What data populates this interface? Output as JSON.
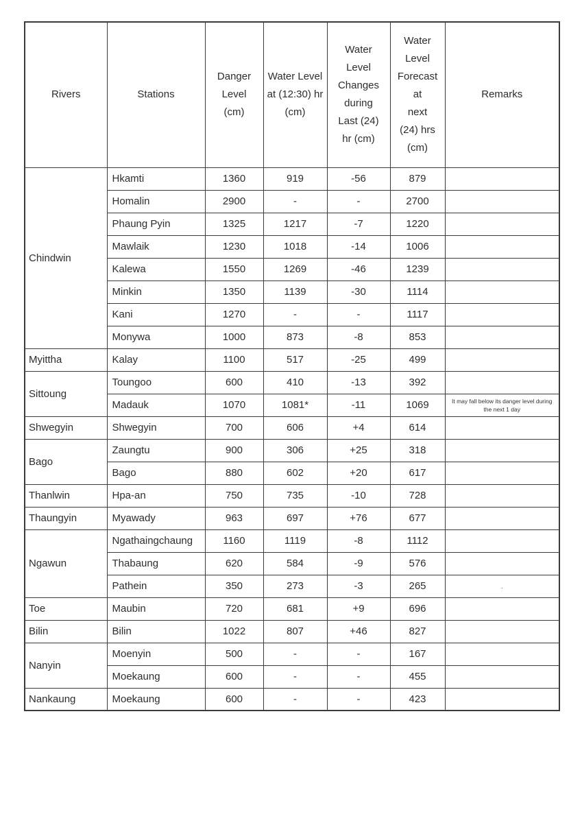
{
  "colors": {
    "background": "#ffffff",
    "text": "#2d2d2d",
    "border": "#3a3a3a"
  },
  "table": {
    "columns": [
      {
        "id": "rivers",
        "label": "Rivers"
      },
      {
        "id": "stations",
        "label": "Stations"
      },
      {
        "id": "danger-level",
        "label": "Danger\nLevel\n(cm)"
      },
      {
        "id": "water-level",
        "label": "Water Level\nat (12:30) hr\n(cm)"
      },
      {
        "id": "water-level-changes",
        "label": "Water\nLevel\nChanges\nduring\nLast (24)\nhr (cm)"
      },
      {
        "id": "water-level-forecast",
        "label": "Water\nLevel\nForecast\nat\nnext\n(24) hrs\n(cm)"
      },
      {
        "id": "remarks",
        "label": "Remarks"
      }
    ],
    "groups": [
      {
        "river": "Chindwin",
        "rows": [
          {
            "station": "Hkamti",
            "danger": "1360",
            "level": "919",
            "change": "-56",
            "forecast": "879",
            "remarks": ""
          },
          {
            "station": "Homalin",
            "danger": "2900",
            "level": "-",
            "change": "-",
            "forecast": "2700",
            "remarks": ""
          },
          {
            "station": "Phaung Pyin",
            "danger": "1325",
            "level": "1217",
            "change": "-7",
            "forecast": "1220",
            "remarks": ""
          },
          {
            "station": "Mawlaik",
            "danger": "1230",
            "level": "1018",
            "change": "-14",
            "forecast": "1006",
            "remarks": ""
          },
          {
            "station": "Kalewa",
            "danger": "1550",
            "level": "1269",
            "change": "-46",
            "forecast": "1239",
            "remarks": ""
          },
          {
            "station": "Minkin",
            "danger": "1350",
            "level": "1139",
            "change": "-30",
            "forecast": "1114",
            "remarks": ""
          },
          {
            "station": "Kani",
            "danger": "1270",
            "level": "-",
            "change": "-",
            "forecast": "1117",
            "remarks": ""
          },
          {
            "station": "Monywa",
            "danger": "1000",
            "level": "873",
            "change": "-8",
            "forecast": "853",
            "remarks": ""
          }
        ]
      },
      {
        "river": "Myittha",
        "rows": [
          {
            "station": "Kalay",
            "danger": "1100",
            "level": "517",
            "change": "-25",
            "forecast": "499",
            "remarks": ""
          }
        ]
      },
      {
        "river": "Sittoung",
        "rows": [
          {
            "station": "Toungoo",
            "danger": "600",
            "level": "410",
            "change": "-13",
            "forecast": "392",
            "remarks": ""
          },
          {
            "station": "Madauk",
            "danger": "1070",
            "level": "1081*",
            "change": "-11",
            "forecast": "1069",
            "remarks": "It may fall below its danger level  during the next 1 day"
          }
        ]
      },
      {
        "river": "Shwegyin",
        "rows": [
          {
            "station": "Shwegyin",
            "danger": "700",
            "level": "606",
            "change": "+4",
            "forecast": "614",
            "remarks": ""
          }
        ]
      },
      {
        "river": "Bago",
        "rows": [
          {
            "station": "Zaungtu",
            "danger": "900",
            "level": "306",
            "change": "+25",
            "forecast": "318",
            "remarks": ""
          },
          {
            "station": "Bago",
            "danger": "880",
            "level": "602",
            "change": "+20",
            "forecast": "617",
            "remarks": ""
          }
        ]
      },
      {
        "river": "Thanlwin",
        "rows": [
          {
            "station": "Hpa-an",
            "danger": "750",
            "level": "735",
            "change": "-10",
            "forecast": "728",
            "remarks": ""
          }
        ]
      },
      {
        "river": "Thaungyin",
        "rows": [
          {
            "station": "Myawady",
            "danger": "963",
            "level": "697",
            "change": "+76",
            "forecast": "677",
            "remarks": ""
          }
        ]
      },
      {
        "river": "Ngawun",
        "rows": [
          {
            "station": "Ngathaingchaung",
            "danger": "1160",
            "level": "1119",
            "change": "-8",
            "forecast": "1112",
            "remarks": ""
          },
          {
            "station": "Thabaung",
            "danger": "620",
            "level": "584",
            "change": "-9",
            "forecast": "576",
            "remarks": ""
          },
          {
            "station": "Pathein",
            "danger": "350",
            "level": "273",
            "change": "-3",
            "forecast": "265",
            "remarks": "."
          }
        ]
      },
      {
        "river": "Toe",
        "rows": [
          {
            "station": "Maubin",
            "danger": "720",
            "level": "681",
            "change": "+9",
            "forecast": "696",
            "remarks": ""
          }
        ]
      },
      {
        "river": "Bilin",
        "rows": [
          {
            "station": "Bilin",
            "danger": "1022",
            "level": "807",
            "change": "+46",
            "forecast": "827",
            "remarks": ""
          }
        ]
      },
      {
        "river": "Nanyin",
        "rows": [
          {
            "station": "Moenyin",
            "danger": "500",
            "level": "-",
            "change": "-",
            "forecast": "167",
            "remarks": ""
          },
          {
            "station": "Moekaung",
            "danger": "600",
            "level": "-",
            "change": "-",
            "forecast": "455",
            "remarks": ""
          }
        ]
      },
      {
        "river": "Nankaung",
        "rows": [
          {
            "station": "Moekaung",
            "danger": "600",
            "level": "-",
            "change": "-",
            "forecast": "423",
            "remarks": ""
          }
        ]
      }
    ]
  }
}
